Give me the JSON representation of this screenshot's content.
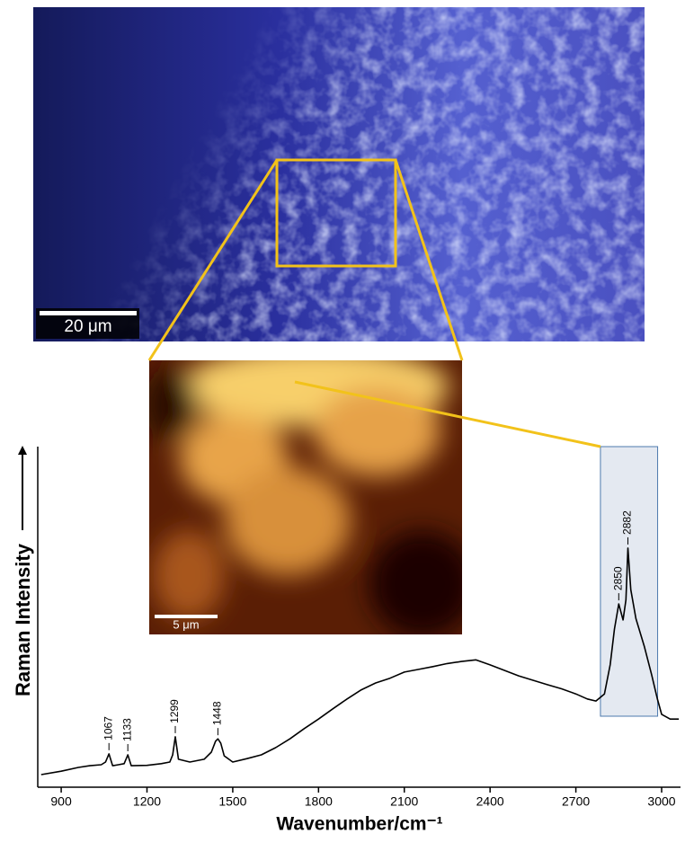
{
  "micrograph": {
    "scale_bar": "20 μm"
  },
  "raman_map": {
    "scale_bar": "5 μm"
  },
  "chart_data": {
    "type": "line",
    "x_label": "Wavenumber/cm⁻¹",
    "y_label": "Raman Intensity",
    "xlim": [
      818,
      3066
    ],
    "xticks": [
      900,
      1200,
      1500,
      1800,
      2100,
      2400,
      2700,
      3000
    ],
    "ylim": [
      0,
      100
    ],
    "color": "#000000",
    "highlight_range": [
      2786,
      2986
    ],
    "peak_labels": [
      1067,
      1133,
      1299,
      1448,
      2850,
      2882
    ],
    "x": [
      830,
      900,
      960,
      1000,
      1040,
      1055,
      1067,
      1080,
      1100,
      1120,
      1133,
      1145,
      1200,
      1250,
      1280,
      1290,
      1299,
      1310,
      1350,
      1400,
      1425,
      1440,
      1448,
      1458,
      1470,
      1500,
      1550,
      1600,
      1650,
      1700,
      1750,
      1800,
      1850,
      1900,
      1950,
      2000,
      2050,
      2100,
      2150,
      2200,
      2250,
      2300,
      2350,
      2400,
      2450,
      2500,
      2550,
      2600,
      2650,
      2700,
      2740,
      2770,
      2800,
      2820,
      2835,
      2850,
      2865,
      2875,
      2882,
      2892,
      2910,
      2940,
      2965,
      2985,
      3000,
      3030,
      3060
    ],
    "values": [
      3.7,
      4.7,
      5.8,
      6.3,
      6.6,
      7.4,
      9.8,
      6.3,
      6.6,
      6.9,
      9.5,
      6.3,
      6.4,
      6.9,
      7.4,
      9.5,
      14.8,
      8.2,
      7.4,
      8.2,
      10.3,
      13.5,
      14.2,
      12.9,
      9.2,
      7.4,
      8.4,
      9.5,
      11.6,
      14.2,
      17.2,
      20.0,
      23.0,
      25.9,
      28.6,
      30.6,
      32.0,
      33.8,
      34.6,
      35.4,
      36.3,
      36.9,
      37.4,
      35.9,
      34.3,
      32.7,
      31.4,
      30.1,
      28.9,
      27.4,
      25.9,
      25.3,
      27.4,
      36.0,
      46.4,
      53.8,
      49.1,
      55.0,
      70.2,
      58.0,
      49.5,
      41.2,
      33.0,
      26.0,
      21.4,
      20.0,
      20.0
    ]
  }
}
